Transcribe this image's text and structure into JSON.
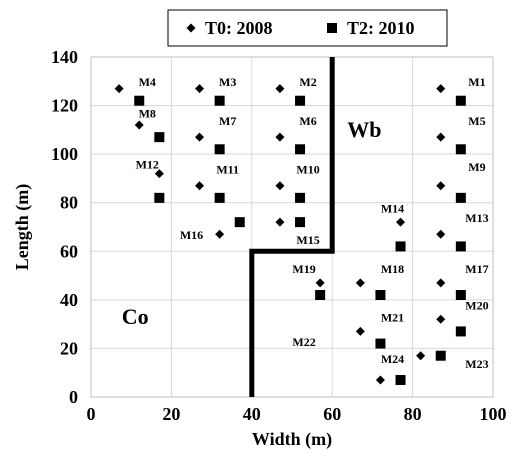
{
  "chart_data": {
    "type": "scatter",
    "xlabel": "Width (m)",
    "ylabel": "Length (m)",
    "xlim": [
      0,
      100
    ],
    "ylim": [
      0,
      140
    ],
    "xticks": [
      0,
      20,
      40,
      60,
      80,
      100
    ],
    "yticks": [
      0,
      20,
      40,
      60,
      80,
      100,
      120,
      140
    ],
    "grid": true,
    "legend_position": "top",
    "series": [
      {
        "name": "T0: 2008",
        "marker": "diamond",
        "color": "#000000",
        "points": [
          {
            "x": 7,
            "y": 127
          },
          {
            "x": 27,
            "y": 127
          },
          {
            "x": 47,
            "y": 127
          },
          {
            "x": 87,
            "y": 127
          },
          {
            "x": 12,
            "y": 112
          },
          {
            "x": 27,
            "y": 107
          },
          {
            "x": 47,
            "y": 107
          },
          {
            "x": 87,
            "y": 107
          },
          {
            "x": 17,
            "y": 92
          },
          {
            "x": 27,
            "y": 87
          },
          {
            "x": 47,
            "y": 87
          },
          {
            "x": 87,
            "y": 87
          },
          {
            "x": 32,
            "y": 67
          },
          {
            "x": 47,
            "y": 72
          },
          {
            "x": 77,
            "y": 72
          },
          {
            "x": 87,
            "y": 67
          },
          {
            "x": 57,
            "y": 47
          },
          {
            "x": 67,
            "y": 47
          },
          {
            "x": 87,
            "y": 47
          },
          {
            "x": 67,
            "y": 27
          },
          {
            "x": 87,
            "y": 32
          },
          {
            "x": 72,
            "y": 7
          },
          {
            "x": 82,
            "y": 17
          }
        ]
      },
      {
        "name": "T2: 2010",
        "marker": "square",
        "color": "#000000",
        "points": [
          {
            "x": 12,
            "y": 122
          },
          {
            "x": 32,
            "y": 122
          },
          {
            "x": 52,
            "y": 122
          },
          {
            "x": 92,
            "y": 122
          },
          {
            "x": 17,
            "y": 107
          },
          {
            "x": 32,
            "y": 102
          },
          {
            "x": 52,
            "y": 102
          },
          {
            "x": 92,
            "y": 102
          },
          {
            "x": 17,
            "y": 82
          },
          {
            "x": 32,
            "y": 82
          },
          {
            "x": 52,
            "y": 82
          },
          {
            "x": 92,
            "y": 82
          },
          {
            "x": 37,
            "y": 72
          },
          {
            "x": 52,
            "y": 72
          },
          {
            "x": 77,
            "y": 62
          },
          {
            "x": 92,
            "y": 62
          },
          {
            "x": 57,
            "y": 42
          },
          {
            "x": 72,
            "y": 42
          },
          {
            "x": 92,
            "y": 42
          },
          {
            "x": 72,
            "y": 22
          },
          {
            "x": 92,
            "y": 27
          },
          {
            "x": 77,
            "y": 7
          },
          {
            "x": 87,
            "y": 17
          }
        ]
      }
    ],
    "boundary": [
      [
        60,
        140
      ],
      [
        60,
        60
      ],
      [
        40,
        60
      ],
      [
        40,
        0
      ]
    ],
    "region_labels": [
      {
        "text": "Wb",
        "x": 68,
        "y": 107
      },
      {
        "text": "Co",
        "x": 11,
        "y": 30
      }
    ],
    "point_labels": [
      {
        "text": "M1",
        "x": 96,
        "y": 128
      },
      {
        "text": "M2",
        "x": 54,
        "y": 128
      },
      {
        "text": "M3",
        "x": 34,
        "y": 128
      },
      {
        "text": "M4",
        "x": 14,
        "y": 128
      },
      {
        "text": "M5",
        "x": 96,
        "y": 112
      },
      {
        "text": "M6",
        "x": 54,
        "y": 112
      },
      {
        "text": "M7",
        "x": 34,
        "y": 112
      },
      {
        "text": "M8",
        "x": 14,
        "y": 115
      },
      {
        "text": "M9",
        "x": 96,
        "y": 93
      },
      {
        "text": "M10",
        "x": 54,
        "y": 92
      },
      {
        "text": "M11",
        "x": 34,
        "y": 92
      },
      {
        "text": "M12",
        "x": 14,
        "y": 94
      },
      {
        "text": "M13",
        "x": 96,
        "y": 72
      },
      {
        "text": "M14",
        "x": 75,
        "y": 76
      },
      {
        "text": "M15",
        "x": 54,
        "y": 63
      },
      {
        "text": "M16",
        "x": 25,
        "y": 65
      },
      {
        "text": "M17",
        "x": 96,
        "y": 51
      },
      {
        "text": "M18",
        "x": 75,
        "y": 51
      },
      {
        "text": "M19",
        "x": 53,
        "y": 51
      },
      {
        "text": "M20",
        "x": 96,
        "y": 36
      },
      {
        "text": "M21",
        "x": 75,
        "y": 31
      },
      {
        "text": "M22",
        "x": 53,
        "y": 21
      },
      {
        "text": "M23",
        "x": 96,
        "y": 12
      },
      {
        "text": "M24",
        "x": 75,
        "y": 14
      }
    ]
  }
}
